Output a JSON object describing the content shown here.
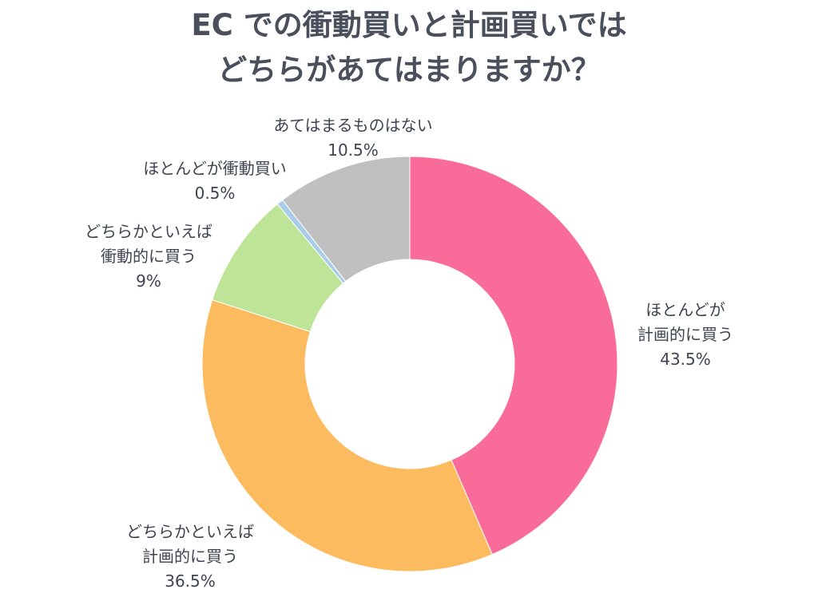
{
  "chart_data": {
    "type": "pie",
    "title_lines": [
      "EC での衝動買いと計画買いでは",
      "どちらがあてはまりますか？"
    ],
    "categories": [
      "ほとんどが計画的に買う",
      "どちらかといえば計画的に買う",
      "どちらかといえば衝動的に買う",
      "ほとんどが衝動買い",
      "あてはまるものはない"
    ],
    "values": [
      43.5,
      36.5,
      9,
      0.5,
      10.5
    ],
    "value_labels": [
      "43.5%",
      "36.5%",
      "9%",
      "0.5%",
      "10.5%"
    ],
    "label_lines": [
      [
        "ほとんどが",
        "計画的に買う"
      ],
      [
        "どちらかといえば",
        "計画的に買う"
      ],
      [
        "どちらかといえば",
        "衝動的に買う"
      ],
      [
        "ほとんどが衝動買い"
      ],
      [
        "あてはまるものはない"
      ]
    ],
    "colors": [
      "#f96b98",
      "#fdbb5f",
      "#bde497",
      "#a9cde9",
      "#c0c0c0"
    ],
    "donut": true,
    "start_angle_deg": 0,
    "direction": "clockwise",
    "legend": "none"
  }
}
